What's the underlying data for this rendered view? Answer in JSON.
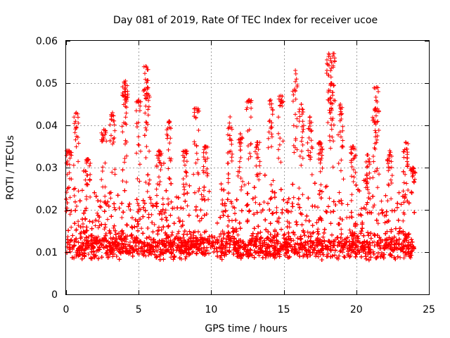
{
  "chart_data": {
    "type": "scatter",
    "title": "Day 081 of 2019, Rate Of TEC Index for receiver ucoe",
    "xlabel": "GPS time / hours",
    "ylabel": "ROTI / TECUs",
    "xlim": [
      0,
      25
    ],
    "ylim": [
      0,
      0.06
    ],
    "xticks": [
      0,
      5,
      10,
      15,
      20,
      25
    ],
    "xtick_labels": [
      "0",
      "5",
      "10",
      "15",
      "20",
      "25"
    ],
    "yticks": [
      0,
      0.01,
      0.02,
      0.03,
      0.04,
      0.05,
      0.06
    ],
    "ytick_labels": [
      "0",
      "0.01",
      "0.02",
      "0.03",
      "0.04",
      "0.05",
      "0.06"
    ],
    "grid": true,
    "marker": "+",
    "series": [
      {
        "name": "ROTI",
        "color": "#ff0000",
        "x_range": [
          0,
          24
        ],
        "typical_range": [
          0.004,
          0.02
        ],
        "peaks": [
          {
            "x": 0.2,
            "y": 0.034
          },
          {
            "x": 0.7,
            "y": 0.043
          },
          {
            "x": 1.5,
            "y": 0.032
          },
          {
            "x": 2.6,
            "y": 0.039
          },
          {
            "x": 3.2,
            "y": 0.043
          },
          {
            "x": 4.0,
            "y": 0.05
          },
          {
            "x": 4.1,
            "y": 0.0505
          },
          {
            "x": 5.0,
            "y": 0.046
          },
          {
            "x": 5.5,
            "y": 0.054
          },
          {
            "x": 5.6,
            "y": 0.049
          },
          {
            "x": 6.4,
            "y": 0.034
          },
          {
            "x": 7.1,
            "y": 0.041
          },
          {
            "x": 8.2,
            "y": 0.034
          },
          {
            "x": 9.0,
            "y": 0.044
          },
          {
            "x": 9.6,
            "y": 0.035
          },
          {
            "x": 11.3,
            "y": 0.042
          },
          {
            "x": 12.0,
            "y": 0.038
          },
          {
            "x": 12.6,
            "y": 0.046
          },
          {
            "x": 13.2,
            "y": 0.036
          },
          {
            "x": 14.1,
            "y": 0.046
          },
          {
            "x": 14.8,
            "y": 0.047
          },
          {
            "x": 15.8,
            "y": 0.053
          },
          {
            "x": 16.2,
            "y": 0.045
          },
          {
            "x": 16.8,
            "y": 0.042
          },
          {
            "x": 17.5,
            "y": 0.036
          },
          {
            "x": 18.1,
            "y": 0.057
          },
          {
            "x": 18.4,
            "y": 0.057
          },
          {
            "x": 18.3,
            "y": 0.05
          },
          {
            "x": 18.9,
            "y": 0.045
          },
          {
            "x": 19.8,
            "y": 0.035
          },
          {
            "x": 20.8,
            "y": 0.033
          },
          {
            "x": 21.4,
            "y": 0.049
          },
          {
            "x": 21.3,
            "y": 0.044
          },
          {
            "x": 22.3,
            "y": 0.034
          },
          {
            "x": 23.4,
            "y": 0.036
          },
          {
            "x": 23.9,
            "y": 0.03
          }
        ]
      }
    ]
  }
}
